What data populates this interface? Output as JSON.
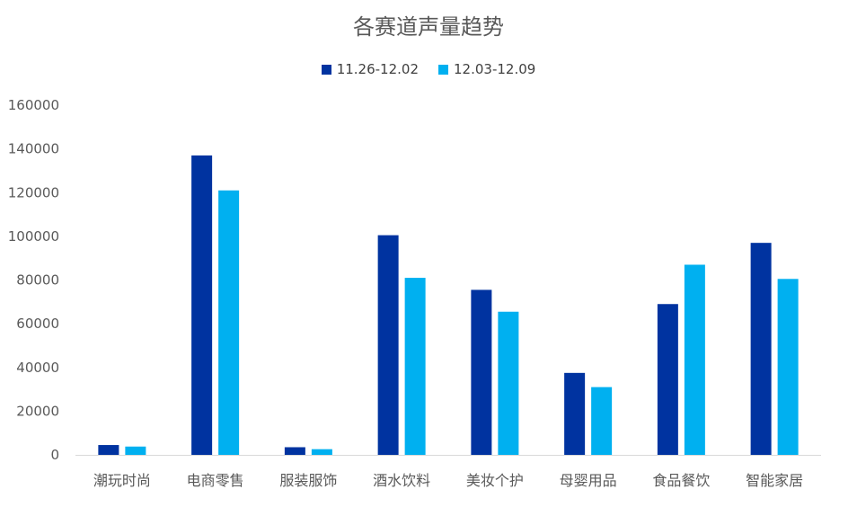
{
  "chart_data": {
    "type": "bar",
    "title": "各赛道声量趋势",
    "categories": [
      "潮玩时尚",
      "电商零售",
      "服装服饰",
      "酒水饮料",
      "美妆个护",
      "母婴用品",
      "食品餐饮",
      "智能家居"
    ],
    "series": [
      {
        "name": "11.26-12.02",
        "color": "#0033a0",
        "values": [
          4500,
          137000,
          3500,
          100500,
          75500,
          37500,
          69000,
          97000
        ]
      },
      {
        "name": "12.03-12.09",
        "color": "#00b0f0",
        "values": [
          3800,
          121000,
          2600,
          81000,
          65500,
          31000,
          87000,
          80500
        ]
      }
    ],
    "ylim": [
      0,
      160000
    ],
    "yticks": [
      0,
      20000,
      40000,
      60000,
      80000,
      100000,
      120000,
      140000,
      160000
    ],
    "legend_position": "top",
    "grid": false
  }
}
